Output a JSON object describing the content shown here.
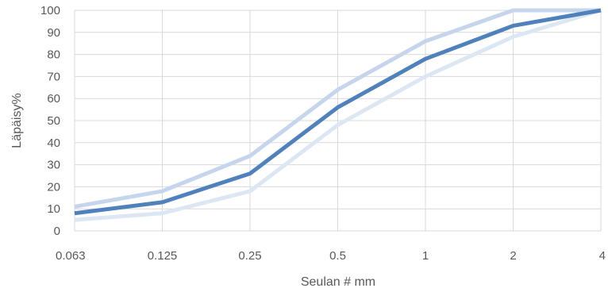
{
  "chart_data": {
    "type": "line",
    "title": "",
    "xlabel": "Seulan # mm",
    "ylabel": "Läpäisy%",
    "categories": [
      "0.063",
      "0.125",
      "0.25",
      "0.5",
      "1",
      "2",
      "4"
    ],
    "ylim": [
      0,
      100
    ],
    "yticks": [
      0,
      10,
      20,
      30,
      40,
      50,
      60,
      70,
      80,
      90,
      100
    ],
    "grid": true,
    "legend": "none",
    "series": [
      {
        "color": "#c5d5ec",
        "values": [
          11,
          18,
          34,
          64,
          86,
          100,
          100
        ]
      },
      {
        "color": "#dde7f3",
        "values": [
          5,
          8,
          18,
          48,
          70,
          88,
          100
        ]
      },
      {
        "color": "#4f81bd",
        "values": [
          8,
          13,
          26,
          56,
          78,
          93,
          100
        ]
      }
    ]
  }
}
